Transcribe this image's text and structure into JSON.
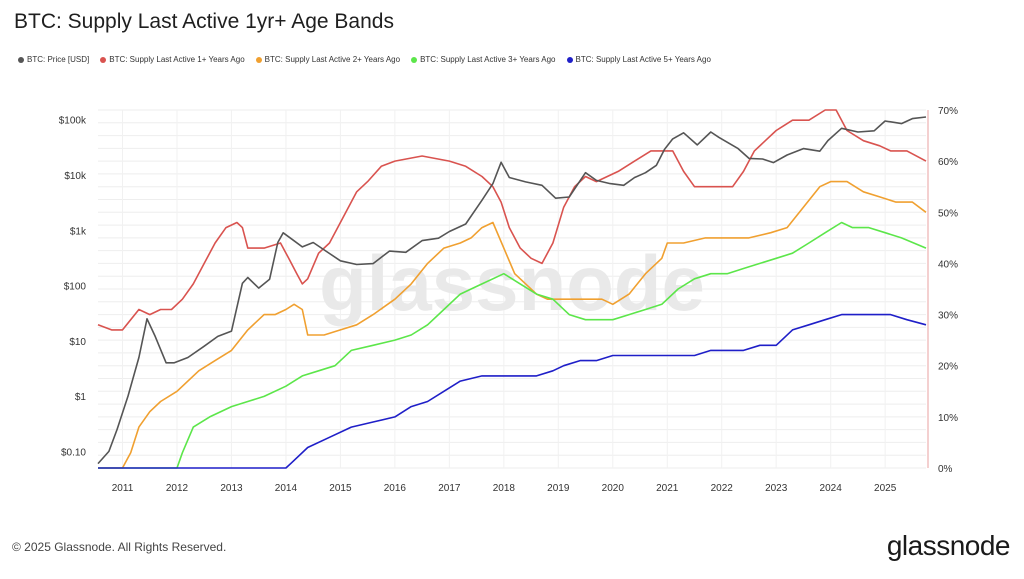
{
  "title": "BTC: Supply Last Active 1yr+ Age Bands",
  "footer": "© 2025 Glassnode. All Rights Reserved.",
  "brand": "glassnode",
  "watermark": "glassnode",
  "legend": [
    {
      "label": "BTC: Price [USD]",
      "color": "#555555"
    },
    {
      "label": "BTC: Supply Last Active 1+ Years Ago",
      "color": "#d9534f"
    },
    {
      "label": "BTC: Supply Last Active 2+ Years Ago",
      "color": "#f0a030"
    },
    {
      "label": "BTC: Supply Last Active 3+ Years Ago",
      "color": "#5ce64a"
    },
    {
      "label": "BTC: Supply Last Active 5+ Years Ago",
      "color": "#1f1fc8"
    }
  ],
  "chart_data": {
    "type": "line",
    "x_ticks": [
      "2011",
      "2012",
      "2013",
      "2014",
      "2015",
      "2016",
      "2017",
      "2018",
      "2019",
      "2020",
      "2021",
      "2022",
      "2023",
      "2024",
      "2025"
    ],
    "y_left": {
      "scale": "log",
      "ticks": [
        "$0.10",
        "$1",
        "$10",
        "$100",
        "$1k",
        "$10k",
        "$100k"
      ],
      "range": [
        0.05,
        150000
      ]
    },
    "y_right": {
      "ticks": [
        "0%",
        "10%",
        "20%",
        "30%",
        "40%",
        "50%",
        "60%",
        "70%"
      ],
      "range": [
        0,
        70
      ]
    },
    "grid": true,
    "legend_position": "top-left",
    "series": [
      {
        "name": "BTC: Price [USD]",
        "axis": "left",
        "color": "#555555",
        "x": [
          2010.55,
          2010.75,
          2010.9,
          2011.1,
          2011.3,
          2011.45,
          2011.6,
          2011.8,
          2011.95,
          2012.2,
          2012.5,
          2012.75,
          2013.0,
          2013.2,
          2013.3,
          2013.5,
          2013.7,
          2013.85,
          2013.95,
          2014.1,
          2014.3,
          2014.5,
          2014.8,
          2015.0,
          2015.3,
          2015.6,
          2015.9,
          2016.2,
          2016.5,
          2016.8,
          2017.0,
          2017.3,
          2017.6,
          2017.8,
          2017.95,
          2018.1,
          2018.4,
          2018.7,
          2018.95,
          2019.2,
          2019.5,
          2019.7,
          2019.95,
          2020.2,
          2020.4,
          2020.6,
          2020.8,
          2020.95,
          2021.1,
          2021.3,
          2021.55,
          2021.8,
          2021.95,
          2022.3,
          2022.5,
          2022.75,
          2022.95,
          2023.2,
          2023.5,
          2023.8,
          2023.95,
          2024.2,
          2024.5,
          2024.8,
          2025.0,
          2025.3,
          2025.5,
          2025.75
        ],
        "y": [
          0.06,
          0.1,
          0.25,
          1,
          5,
          25,
          12,
          4,
          4,
          5,
          8,
          12,
          15,
          110,
          140,
          90,
          130,
          600,
          900,
          700,
          500,
          600,
          380,
          280,
          240,
          250,
          420,
          400,
          650,
          720,
          950,
          1300,
          3500,
          7000,
          17000,
          9000,
          7500,
          6500,
          3800,
          4000,
          11000,
          8000,
          7000,
          6500,
          9000,
          11000,
          15000,
          29000,
          45000,
          58000,
          35000,
          60000,
          48000,
          30000,
          20000,
          19500,
          16800,
          23000,
          30000,
          27000,
          42000,
          70000,
          60000,
          63000,
          95000,
          85000,
          105000,
          112000
        ]
      },
      {
        "name": "BTC: Supply Last Active 1+ Years Ago",
        "axis": "right",
        "color": "#d9534f",
        "x": [
          2010.55,
          2010.8,
          2011.0,
          2011.3,
          2011.5,
          2011.7,
          2011.9,
          2012.1,
          2012.3,
          2012.5,
          2012.7,
          2012.9,
          2013.1,
          2013.2,
          2013.3,
          2013.6,
          2013.9,
          2014.05,
          2014.2,
          2014.3,
          2014.4,
          2014.6,
          2014.8,
          2015.0,
          2015.3,
          2015.5,
          2015.75,
          2016.0,
          2016.5,
          2017.0,
          2017.3,
          2017.6,
          2017.8,
          2017.95,
          2018.1,
          2018.3,
          2018.5,
          2018.7,
          2018.9,
          2019.1,
          2019.3,
          2019.5,
          2019.7,
          2019.9,
          2020.1,
          2020.4,
          2020.7,
          2020.9,
          2021.1,
          2021.3,
          2021.5,
          2021.8,
          2022.0,
          2022.2,
          2022.4,
          2022.6,
          2022.8,
          2023.0,
          2023.3,
          2023.6,
          2023.9,
          2024.1,
          2024.3,
          2024.6,
          2024.9,
          2025.1,
          2025.4,
          2025.75
        ],
        "y": [
          28,
          27,
          27,
          31,
          30,
          31,
          31,
          33,
          36,
          40,
          44,
          47,
          48,
          47,
          43,
          43,
          44,
          41,
          38,
          36,
          37,
          42,
          44,
          48,
          54,
          56,
          59,
          60,
          61,
          60,
          59,
          57,
          55,
          52,
          47,
          43,
          41,
          40,
          44,
          51,
          55,
          57,
          56,
          57,
          58,
          60,
          62,
          62,
          62,
          58,
          55,
          55,
          55,
          55,
          58,
          62,
          64,
          66,
          68,
          68,
          70,
          70,
          66,
          64,
          63,
          62,
          62,
          60
        ]
      },
      {
        "name": "BTC: Supply Last Active 2+ Years Ago",
        "axis": "right",
        "color": "#f0a030",
        "x": [
          2010.55,
          2011.0,
          2011.15,
          2011.3,
          2011.5,
          2011.7,
          2012.0,
          2012.4,
          2012.7,
          2013.0,
          2013.3,
          2013.6,
          2013.8,
          2014.0,
          2014.15,
          2014.3,
          2014.4,
          2014.7,
          2015.0,
          2015.3,
          2015.6,
          2016.0,
          2016.3,
          2016.6,
          2016.9,
          2017.2,
          2017.4,
          2017.6,
          2017.8,
          2018.0,
          2018.2,
          2018.6,
          2018.8,
          2019.1,
          2019.3,
          2019.6,
          2019.8,
          2020.0,
          2020.3,
          2020.6,
          2020.9,
          2021.0,
          2021.3,
          2021.7,
          2022.0,
          2022.5,
          2022.9,
          2023.2,
          2023.5,
          2023.8,
          2024.0,
          2024.3,
          2024.6,
          2024.9,
          2025.2,
          2025.5,
          2025.75
        ],
        "y": [
          0,
          0,
          3,
          8,
          11,
          13,
          15,
          19,
          21,
          23,
          27,
          30,
          30,
          31,
          32,
          31,
          26,
          26,
          27,
          28,
          30,
          33,
          36,
          40,
          43,
          44,
          45,
          47,
          48,
          43,
          38,
          34,
          33,
          33,
          33,
          33,
          33,
          32,
          34,
          38,
          41,
          44,
          44,
          45,
          45,
          45,
          46,
          47,
          51,
          55,
          56,
          56,
          54,
          53,
          52,
          52,
          50
        ]
      },
      {
        "name": "BTC: Supply Last Active 3+ Years Ago",
        "axis": "right",
        "color": "#5ce64a",
        "x": [
          2010.55,
          2012.0,
          2012.1,
          2012.3,
          2012.6,
          2013.0,
          2013.3,
          2013.6,
          2014.0,
          2014.3,
          2014.6,
          2014.9,
          2015.2,
          2015.6,
          2016.0,
          2016.3,
          2016.6,
          2016.9,
          2017.2,
          2017.4,
          2017.6,
          2017.8,
          2018.0,
          2018.3,
          2018.6,
          2018.9,
          2019.2,
          2019.5,
          2019.8,
          2020.0,
          2020.3,
          2020.6,
          2020.9,
          2021.2,
          2021.5,
          2021.8,
          2022.1,
          2022.4,
          2022.7,
          2023.0,
          2023.3,
          2023.6,
          2023.9,
          2024.2,
          2024.4,
          2024.7,
          2025.0,
          2025.3,
          2025.75
        ],
        "y": [
          0,
          0,
          3,
          8,
          10,
          12,
          13,
          14,
          16,
          18,
          19,
          20,
          23,
          24,
          25,
          26,
          28,
          31,
          34,
          35,
          36,
          37,
          38,
          36,
          34,
          33,
          30,
          29,
          29,
          29,
          30,
          31,
          32,
          35,
          37,
          38,
          38,
          39,
          40,
          41,
          42,
          44,
          46,
          48,
          47,
          47,
          46,
          45,
          43
        ]
      },
      {
        "name": "BTC: Supply Last Active 5+ Years Ago",
        "axis": "right",
        "color": "#1f1fc8",
        "x": [
          2010.55,
          2014.0,
          2014.1,
          2014.4,
          2014.8,
          2015.2,
          2015.6,
          2016.0,
          2016.3,
          2016.6,
          2016.9,
          2017.2,
          2017.6,
          2018.0,
          2018.3,
          2018.6,
          2018.9,
          2019.1,
          2019.4,
          2019.7,
          2020.0,
          2020.3,
          2020.6,
          2020.9,
          2021.2,
          2021.5,
          2021.8,
          2022.1,
          2022.4,
          2022.7,
          2023.0,
          2023.3,
          2023.6,
          2023.9,
          2024.2,
          2024.5,
          2024.8,
          2025.1,
          2025.4,
          2025.75
        ],
        "y": [
          0,
          0,
          1,
          4,
          6,
          8,
          9,
          10,
          12,
          13,
          15,
          17,
          18,
          18,
          18,
          18,
          19,
          20,
          21,
          21,
          22,
          22,
          22,
          22,
          22,
          22,
          23,
          23,
          23,
          24,
          24,
          27,
          28,
          29,
          30,
          30,
          30,
          30,
          29,
          28
        ]
      }
    ]
  }
}
